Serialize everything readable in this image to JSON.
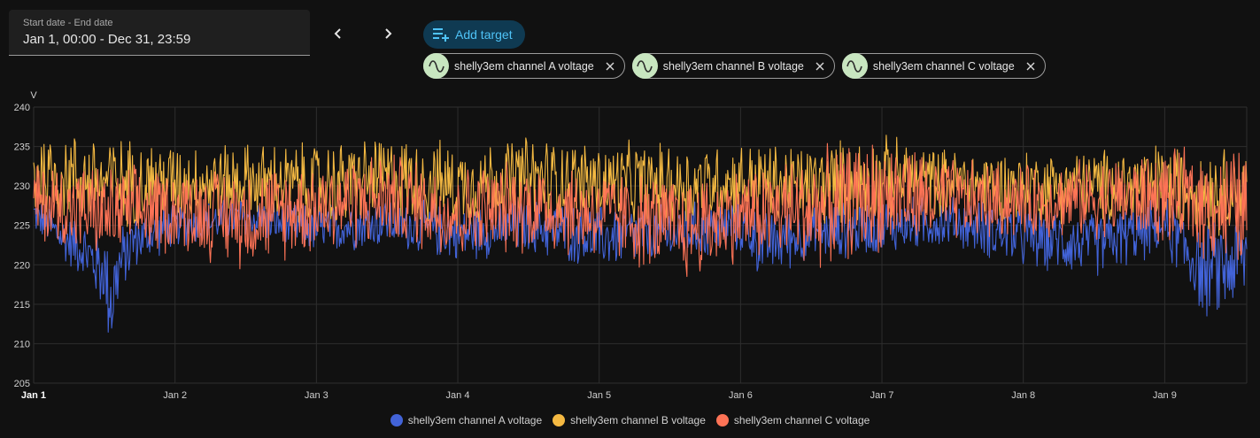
{
  "date_picker": {
    "label": "Start date - End date",
    "value": "Jan 1, 00:00 - Dec 31, 23:59"
  },
  "nav": {
    "prev_icon": "chevron-left-icon",
    "next_icon": "chevron-right-icon"
  },
  "add_target": {
    "label": "Add target",
    "icon": "playlist-plus-icon"
  },
  "targets": [
    {
      "label": "shelly3em channel A voltage",
      "icon": "sine-wave-icon"
    },
    {
      "label": "shelly3em channel B voltage",
      "icon": "sine-wave-icon"
    },
    {
      "label": "shelly3em channel C voltage",
      "icon": "sine-wave-icon"
    }
  ],
  "colors": {
    "accent": "#4fc3f7",
    "chip_icon_bg": "#c8e6c0",
    "series_a": "#4263d8",
    "series_b": "#f4b942",
    "series_c": "#fd7356"
  },
  "chart_data": {
    "type": "line",
    "unit_label": "V",
    "ylim": [
      205,
      240
    ],
    "y_ticks": [
      "205",
      "210",
      "215",
      "220",
      "225",
      "230",
      "235",
      "240"
    ],
    "x_ticks": [
      "Jan 1",
      "Jan 2",
      "Jan 3",
      "Jan 4",
      "Jan 5",
      "Jan 6",
      "Jan 7",
      "Jan 8",
      "Jan 9"
    ],
    "x_range_days": [
      0,
      8.58
    ],
    "grid": true,
    "legend_position": "bottom",
    "series": [
      {
        "name": "shelly3em channel A voltage",
        "color": "#4263d8",
        "x_days": [
          0,
          0.2,
          0.35,
          0.5,
          0.55,
          0.6,
          0.7,
          1.0,
          1.5,
          2.0,
          2.5,
          3.0,
          3.5,
          4.0,
          4.5,
          5.0,
          5.15,
          5.5,
          6.0,
          6.5,
          7.0,
          7.5,
          8.0,
          8.3,
          8.58
        ],
        "low": [
          224,
          220,
          218,
          213,
          207,
          214,
          219,
          222,
          223,
          221,
          222,
          220,
          221,
          219,
          220,
          221,
          218,
          220,
          221,
          222,
          219,
          218,
          221,
          212,
          214
        ],
        "high": [
          229,
          227,
          226,
          225,
          224,
          225,
          227,
          228,
          229,
          228,
          229,
          228,
          229,
          228,
          228,
          229,
          227,
          228,
          229,
          229,
          228,
          227,
          229,
          226,
          228
        ]
      },
      {
        "name": "shelly3em channel B voltage",
        "color": "#f4b942",
        "x_days": [
          0,
          0.5,
          1.0,
          1.5,
          2.0,
          2.5,
          3.0,
          3.5,
          4.0,
          4.5,
          5.0,
          5.5,
          6.0,
          6.5,
          7.0,
          7.5,
          8.0,
          8.3,
          8.58
        ],
        "low": [
          225,
          224,
          225,
          225,
          224,
          225,
          224,
          225,
          225,
          224,
          225,
          224,
          225,
          226,
          225,
          225,
          224,
          223,
          224
        ],
        "high": [
          238,
          237,
          236,
          236,
          236,
          237,
          236,
          237,
          236,
          236,
          236,
          236,
          237,
          235,
          235,
          235,
          236,
          236,
          235
        ]
      },
      {
        "name": "shelly3em channel C voltage",
        "color": "#fd7356",
        "x_days": [
          0,
          0.5,
          1.0,
          1.5,
          2.0,
          2.5,
          3.0,
          3.5,
          4.0,
          4.5,
          4.6,
          5.0,
          5.5,
          6.0,
          6.5,
          7.0,
          7.5,
          8.0,
          8.58
        ],
        "low": [
          222,
          220,
          221,
          219,
          221,
          222,
          220,
          221,
          220,
          218,
          217,
          220,
          219,
          221,
          222,
          223,
          223,
          222,
          218
        ],
        "high": [
          234,
          233,
          233,
          233,
          234,
          235,
          233,
          234,
          233,
          232,
          232,
          233,
          235,
          237,
          234,
          233,
          234,
          235,
          236
        ]
      }
    ]
  }
}
